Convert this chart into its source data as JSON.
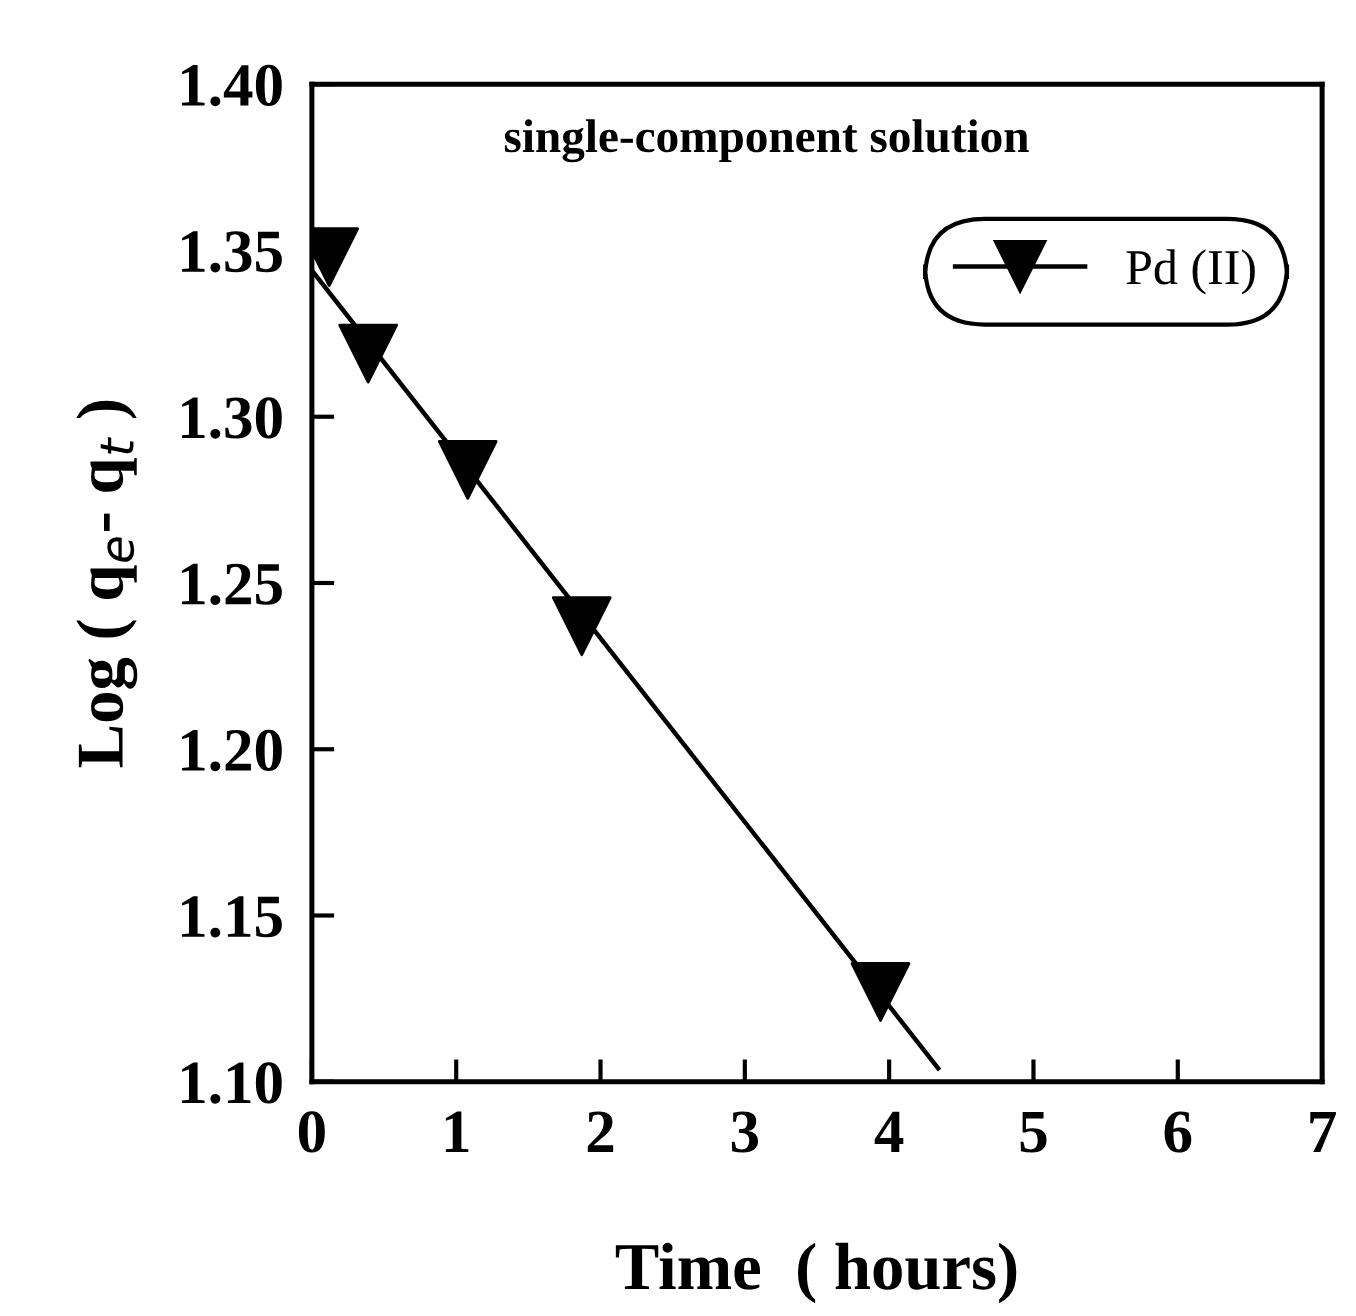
{
  "chart_data": {
    "type": "scatter",
    "title": "single-component solution",
    "xlabel": "Time  ( hours)",
    "ylabel": "Log ( q$_{e}$- q$_{t}$ )",
    "xlim": [
      0,
      7
    ],
    "xticks": [
      0,
      1,
      2,
      3,
      4,
      5,
      6,
      7
    ],
    "ylim": [
      1.1,
      1.4
    ],
    "yticks": [
      {
        "value": 1.1,
        "label": "1.10"
      },
      1.15,
      {
        "value": 1.2,
        "label": "1.20"
      },
      1.25,
      {
        "value": 1.3,
        "label": "1.30"
      },
      1.35,
      {
        "value": 1.4,
        "label": "1.40"
      }
    ],
    "grid": false,
    "legend": "top right",
    "series": [
      {
        "name": "Pd (II)",
        "marker": "triangle",
        "color": "#000000",
        "x": [
          0.12,
          0.39,
          1.08,
          1.87,
          3.94
        ],
        "values": [
          1.348,
          1.319,
          1.284,
          1.237,
          1.127
        ]
      },
      {
        "type": "line",
        "marker": "none",
        "color": "#000000",
        "line_style": "solid",
        "x": [
          0,
          4.34
        ],
        "values": [
          1.344,
          1.104
        ]
      }
    ]
  }
}
